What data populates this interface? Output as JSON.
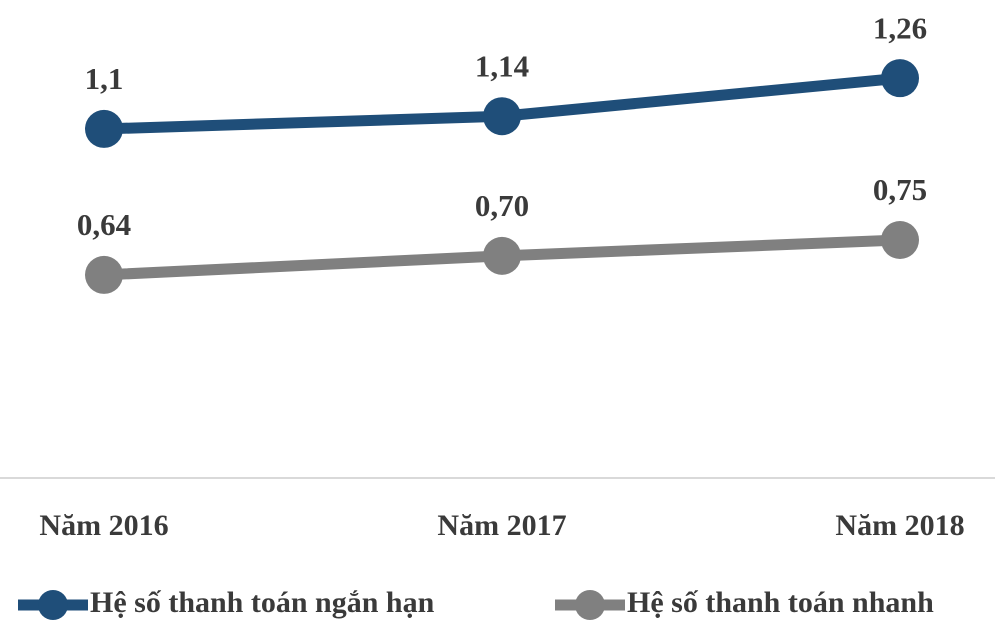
{
  "chart_data": {
    "type": "line",
    "categories": [
      "Năm 2016",
      "Năm 2017",
      "Năm 2018"
    ],
    "series": [
      {
        "name": "Hệ số thanh toán ngắn hạn",
        "color": "#1f4e79",
        "values": [
          1.1,
          1.14,
          1.26
        ],
        "value_labels": [
          "1,1",
          "1,14",
          "1,26"
        ]
      },
      {
        "name": "Hệ số thanh toán nhanh",
        "color": "#808080",
        "values": [
          0.64,
          0.7,
          0.75
        ],
        "value_labels": [
          "0,64",
          "0,70",
          "0,75"
        ]
      }
    ],
    "ylim": [
      0,
      1.5
    ],
    "legend": "bottom"
  }
}
